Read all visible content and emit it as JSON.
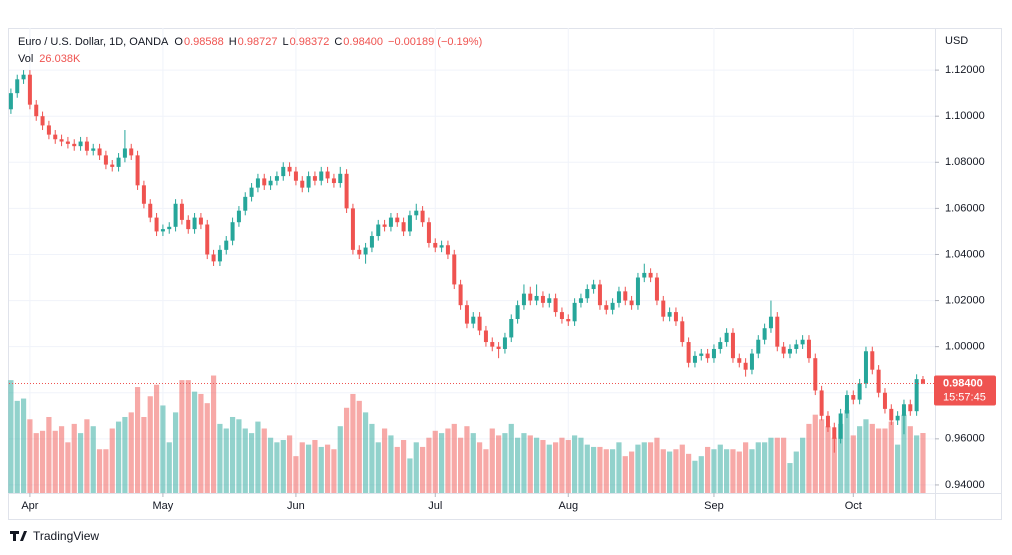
{
  "chart_data": {
    "type": "candlestick",
    "legend": {
      "symbol": "Euro / U.S. Dollar, 1D, OANDA",
      "fields": [
        {
          "key": "O",
          "value": "0.98588"
        },
        {
          "key": "H",
          "value": "0.98727"
        },
        {
          "key": "L",
          "value": "0.98372"
        },
        {
          "key": "C",
          "value": "0.98400"
        }
      ],
      "change": "−0.00189 (−0.19%)",
      "volume_key": "Vol",
      "volume_value": "26.038K"
    },
    "currency": "USD",
    "brand": "TradingView",
    "up_color": "#26a69a",
    "down_color": "#ef5350",
    "grid": true,
    "ylim": [
      0.9365,
      1.1374
    ],
    "yticks": [
      {
        "value": 0.94,
        "label": "0.94000"
      },
      {
        "value": 0.96,
        "label": "0.96000"
      },
      {
        "value": 0.98,
        "label": "0.98000"
      },
      {
        "value": 1.0,
        "label": "1.00000"
      },
      {
        "value": 1.02,
        "label": "1.02000"
      },
      {
        "value": 1.04,
        "label": "1.04000"
      },
      {
        "value": 1.06,
        "label": "1.06000"
      },
      {
        "value": 1.08,
        "label": "1.08000"
      },
      {
        "value": 1.1,
        "label": "1.10000"
      },
      {
        "value": 1.12,
        "label": "1.12000"
      }
    ],
    "xlim": [
      -0.3,
      145.9
    ],
    "xticks": [
      {
        "value": 3,
        "label": "Apr"
      },
      {
        "value": 24,
        "label": "May"
      },
      {
        "value": 45,
        "label": "Jun"
      },
      {
        "value": 67,
        "label": "Jul"
      },
      {
        "value": 88,
        "label": "Aug"
      },
      {
        "value": 111,
        "label": "Sep"
      },
      {
        "value": 133,
        "label": "Oct"
      }
    ],
    "price_tag": {
      "value": 0.984,
      "label": "0.98400",
      "countdown": "15:57:45"
    },
    "volume_lim": [
      0,
      201000
    ],
    "ohlc": [
      [
        1.103,
        1.112,
        1.101,
        1.11
      ],
      [
        1.11,
        1.118,
        1.108,
        1.116
      ],
      [
        1.116,
        1.12,
        1.114,
        1.118
      ],
      [
        1.118,
        1.12,
        1.103,
        1.105
      ],
      [
        1.105,
        1.107,
        1.098,
        1.1
      ],
      [
        1.1,
        1.102,
        1.094,
        1.096
      ],
      [
        1.096,
        1.098,
        1.09,
        1.092
      ],
      [
        1.092,
        1.094,
        1.088,
        1.09
      ],
      [
        1.09,
        1.092,
        1.087,
        1.089
      ],
      [
        1.089,
        1.091,
        1.086,
        1.088
      ],
      [
        1.088,
        1.09,
        1.085,
        1.087
      ],
      [
        1.087,
        1.091,
        1.085,
        1.089
      ],
      [
        1.089,
        1.091,
        1.083,
        1.085
      ],
      [
        1.085,
        1.088,
        1.083,
        1.086
      ],
      [
        1.086,
        1.088,
        1.081,
        1.083
      ],
      [
        1.083,
        1.085,
        1.077,
        1.079
      ],
      [
        1.079,
        1.081,
        1.076,
        1.078
      ],
      [
        1.078,
        1.084,
        1.076,
        1.082
      ],
      [
        1.082,
        1.094,
        1.08,
        1.086
      ],
      [
        1.086,
        1.088,
        1.081,
        1.083
      ],
      [
        1.083,
        1.085,
        1.068,
        1.07
      ],
      [
        1.07,
        1.072,
        1.06,
        1.062
      ],
      [
        1.062,
        1.064,
        1.054,
        1.056
      ],
      [
        1.056,
        1.058,
        1.048,
        1.05
      ],
      [
        1.05,
        1.053,
        1.048,
        1.051
      ],
      [
        1.051,
        1.054,
        1.049,
        1.052
      ],
      [
        1.052,
        1.064,
        1.05,
        1.062
      ],
      [
        1.062,
        1.064,
        1.053,
        1.055
      ],
      [
        1.055,
        1.057,
        1.049,
        1.051
      ],
      [
        1.051,
        1.058,
        1.049,
        1.056
      ],
      [
        1.056,
        1.058,
        1.051,
        1.053
      ],
      [
        1.053,
        1.055,
        1.038,
        1.04
      ],
      [
        1.04,
        1.042,
        1.035,
        1.037
      ],
      [
        1.037,
        1.044,
        1.035,
        1.042
      ],
      [
        1.042,
        1.048,
        1.04,
        1.046
      ],
      [
        1.046,
        1.056,
        1.044,
        1.054
      ],
      [
        1.054,
        1.061,
        1.052,
        1.059
      ],
      [
        1.059,
        1.067,
        1.057,
        1.065
      ],
      [
        1.065,
        1.071,
        1.063,
        1.069
      ],
      [
        1.069,
        1.075,
        1.067,
        1.073
      ],
      [
        1.073,
        1.075,
        1.068,
        1.07
      ],
      [
        1.07,
        1.074,
        1.068,
        1.072
      ],
      [
        1.072,
        1.076,
        1.07,
        1.074
      ],
      [
        1.074,
        1.08,
        1.072,
        1.078
      ],
      [
        1.078,
        1.08,
        1.074,
        1.076
      ],
      [
        1.076,
        1.078,
        1.07,
        1.072
      ],
      [
        1.072,
        1.074,
        1.067,
        1.069
      ],
      [
        1.069,
        1.076,
        1.067,
        1.074
      ],
      [
        1.074,
        1.076,
        1.07,
        1.072
      ],
      [
        1.072,
        1.078,
        1.07,
        1.076
      ],
      [
        1.076,
        1.078,
        1.071,
        1.073
      ],
      [
        1.073,
        1.075,
        1.069,
        1.071
      ],
      [
        1.071,
        1.078,
        1.069,
        1.075
      ],
      [
        1.075,
        1.077,
        1.058,
        1.06
      ],
      [
        1.06,
        1.062,
        1.04,
        1.042
      ],
      [
        1.042,
        1.044,
        1.038,
        1.04
      ],
      [
        1.04,
        1.045,
        1.036,
        1.043
      ],
      [
        1.043,
        1.05,
        1.041,
        1.048
      ],
      [
        1.048,
        1.055,
        1.046,
        1.053
      ],
      [
        1.053,
        1.055,
        1.05,
        1.052
      ],
      [
        1.052,
        1.058,
        1.05,
        1.056
      ],
      [
        1.056,
        1.058,
        1.052,
        1.054
      ],
      [
        1.054,
        1.056,
        1.048,
        1.05
      ],
      [
        1.05,
        1.059,
        1.048,
        1.057
      ],
      [
        1.057,
        1.062,
        1.055,
        1.059
      ],
      [
        1.059,
        1.061,
        1.052,
        1.054
      ],
      [
        1.054,
        1.056,
        1.043,
        1.045
      ],
      [
        1.045,
        1.047,
        1.041,
        1.043
      ],
      [
        1.043,
        1.046,
        1.041,
        1.044
      ],
      [
        1.044,
        1.046,
        1.038,
        1.04
      ],
      [
        1.04,
        1.042,
        1.025,
        1.027
      ],
      [
        1.027,
        1.029,
        1.016,
        1.018
      ],
      [
        1.018,
        1.02,
        1.008,
        1.01
      ],
      [
        1.01,
        1.015,
        1.008,
        1.013
      ],
      [
        1.013,
        1.015,
        1.005,
        1.007
      ],
      [
        1.007,
        1.009,
        1.0,
        1.002
      ],
      [
        1.002,
        1.004,
        0.998,
        1.0
      ],
      [
        1.0,
        1.002,
        0.995,
        0.999
      ],
      [
        0.999,
        1.006,
        0.997,
        1.004
      ],
      [
        1.004,
        1.014,
        1.002,
        1.012
      ],
      [
        1.012,
        1.02,
        1.01,
        1.018
      ],
      [
        1.018,
        1.027,
        1.016,
        1.023
      ],
      [
        1.023,
        1.026,
        1.018,
        1.02
      ],
      [
        1.02,
        1.027,
        1.018,
        1.022
      ],
      [
        1.022,
        1.024,
        1.017,
        1.019
      ],
      [
        1.019,
        1.023,
        1.017,
        1.021
      ],
      [
        1.021,
        1.023,
        1.013,
        1.015
      ],
      [
        1.015,
        1.017,
        1.01,
        1.012
      ],
      [
        1.012,
        1.014,
        1.009,
        1.011
      ],
      [
        1.011,
        1.021,
        1.009,
        1.019
      ],
      [
        1.019,
        1.023,
        1.017,
        1.021
      ],
      [
        1.021,
        1.027,
        1.019,
        1.025
      ],
      [
        1.025,
        1.029,
        1.023,
        1.027
      ],
      [
        1.027,
        1.029,
        1.016,
        1.018
      ],
      [
        1.018,
        1.02,
        1.014,
        1.016
      ],
      [
        1.016,
        1.021,
        1.014,
        1.019
      ],
      [
        1.019,
        1.026,
        1.017,
        1.024
      ],
      [
        1.024,
        1.026,
        1.018,
        1.02
      ],
      [
        1.02,
        1.022,
        1.016,
        1.018
      ],
      [
        1.018,
        1.032,
        1.016,
        1.03
      ],
      [
        1.03,
        1.036,
        1.028,
        1.032
      ],
      [
        1.032,
        1.034,
        1.028,
        1.03
      ],
      [
        1.03,
        1.032,
        1.018,
        1.02
      ],
      [
        1.02,
        1.022,
        1.011,
        1.013
      ],
      [
        1.013,
        1.017,
        1.011,
        1.015
      ],
      [
        1.015,
        1.017,
        1.009,
        1.011
      ],
      [
        1.011,
        1.013,
        1.0,
        1.002
      ],
      [
        1.002,
        1.004,
        0.991,
        0.993
      ],
      [
        0.993,
        0.998,
        0.991,
        0.996
      ],
      [
        0.996,
        0.999,
        0.994,
        0.997
      ],
      [
        0.997,
        0.999,
        0.993,
        0.995
      ],
      [
        0.995,
        1.001,
        0.993,
        0.999
      ],
      [
        0.999,
        1.004,
        0.997,
        1.002
      ],
      [
        1.002,
        1.008,
        1.0,
        1.006
      ],
      [
        1.006,
        1.008,
        0.993,
        0.995
      ],
      [
        0.995,
        0.997,
        0.991,
        0.993
      ],
      [
        0.993,
        0.995,
        0.987,
        0.99
      ],
      [
        0.99,
        0.999,
        0.988,
        0.997
      ],
      [
        0.997,
        1.005,
        0.995,
        1.003
      ],
      [
        1.003,
        1.01,
        1.001,
        1.008
      ],
      [
        1.008,
        1.02,
        1.006,
        1.013
      ],
      [
        1.013,
        1.015,
        0.998,
        1.0
      ],
      [
        1.0,
        1.002,
        0.995,
        0.997
      ],
      [
        0.997,
        1.001,
        0.995,
        0.999
      ],
      [
        0.999,
        1.003,
        0.997,
        1.001
      ],
      [
        1.001,
        1.005,
        0.999,
        1.003
      ],
      [
        1.003,
        1.005,
        0.993,
        0.995
      ],
      [
        0.995,
        0.997,
        0.979,
        0.981
      ],
      [
        0.981,
        0.983,
        0.968,
        0.97
      ],
      [
        0.97,
        0.972,
        0.963,
        0.965
      ],
      [
        0.965,
        0.967,
        0.954,
        0.96
      ],
      [
        0.96,
        0.973,
        0.958,
        0.971
      ],
      [
        0.971,
        0.981,
        0.969,
        0.979
      ],
      [
        0.979,
        0.981,
        0.975,
        0.977
      ],
      [
        0.977,
        0.986,
        0.975,
        0.984
      ],
      [
        0.984,
        1.0,
        0.982,
        0.998
      ],
      [
        0.998,
        1.0,
        0.988,
        0.99
      ],
      [
        0.99,
        0.992,
        0.978,
        0.98
      ],
      [
        0.98,
        0.982,
        0.971,
        0.973
      ],
      [
        0.973,
        0.975,
        0.966,
        0.968
      ],
      [
        0.968,
        0.972,
        0.966,
        0.97
      ],
      [
        0.97,
        0.977,
        0.962,
        0.975
      ],
      [
        0.975,
        0.977,
        0.97,
        0.972
      ],
      [
        0.972,
        0.988,
        0.97,
        0.9859
      ],
      [
        0.98588,
        0.98727,
        0.98372,
        0.984
      ]
    ],
    "volume": [
      49000,
      40000,
      41000,
      32000,
      26000,
      27000,
      33000,
      27000,
      29000,
      22000,
      30000,
      26000,
      32000,
      29000,
      19000,
      19000,
      28000,
      31000,
      33000,
      35000,
      46000,
      33000,
      42000,
      47000,
      38000,
      22000,
      35000,
      49000,
      49000,
      44000,
      43000,
      39000,
      51000,
      30000,
      28000,
      33000,
      32000,
      28000,
      26000,
      31000,
      28000,
      24000,
      22000,
      23000,
      25000,
      16000,
      22000,
      21000,
      23000,
      20000,
      21000,
      19000,
      29000,
      37000,
      43000,
      40000,
      35000,
      30000,
      22000,
      28000,
      25000,
      20000,
      23000,
      15000,
      22000,
      20000,
      24000,
      27000,
      26000,
      28000,
      30000,
      24000,
      29000,
      26000,
      22000,
      19000,
      28000,
      25000,
      26000,
      30000,
      24000,
      26000,
      25000,
      24000,
      23000,
      21000,
      22000,
      24000,
      23000,
      25000,
      24000,
      21000,
      20000,
      20000,
      19000,
      19000,
      22000,
      16000,
      18000,
      21000,
      22000,
      22000,
      24000,
      19000,
      18000,
      19000,
      21000,
      17000,
      14000,
      16000,
      20000,
      19000,
      21000,
      19000,
      19000,
      18000,
      22000,
      19000,
      22000,
      22000,
      24000,
      24000,
      24000,
      13000,
      18000,
      24000,
      30000,
      34000,
      32000,
      29000,
      24000,
      30000,
      36000,
      25000,
      29000,
      32000,
      30000,
      28000,
      28000,
      31000,
      21000,
      34000,
      29000,
      25000,
      26038
    ]
  }
}
